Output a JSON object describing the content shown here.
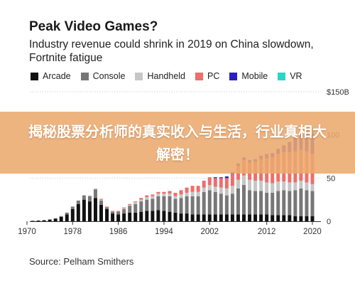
{
  "chart_data": {
    "type": "bar",
    "stacked": true,
    "title": "Peak Video Games?",
    "subtitle": "Industry revenue could shrink in 2019 on China slowdown, Fortnite fatigue",
    "source": "Source: Pelham Smithers",
    "ylim": [
      0,
      150
    ],
    "y_ticks": [
      {
        "value": 150,
        "label": "$150B"
      },
      {
        "value": 100,
        "label": "100"
      },
      {
        "value": 50,
        "label": "50"
      },
      {
        "value": 0,
        "label": "0"
      }
    ],
    "x_tick_labels": [
      "1970",
      "1978",
      "1986",
      "1994",
      "2002",
      "2012",
      "2020"
    ],
    "x_tick_values": [
      1970,
      1978,
      1986,
      1994,
      2002,
      2012,
      2020
    ],
    "xlim": [
      1970.5,
      2020.5
    ],
    "grid": true,
    "legend_position": "top",
    "colors": {
      "Arcade": "#111111",
      "Console": "#777777",
      "Handheld": "#c6c6c6",
      "PC": "#ee6e6a",
      "Mobile": "#2b1fc4",
      "VR": "#2ad6c4"
    },
    "series_names": [
      "Arcade",
      "Console",
      "Handheld",
      "PC",
      "Mobile",
      "VR"
    ],
    "years": [
      1971,
      1972,
      1973,
      1974,
      1975,
      1976,
      1977,
      1978,
      1979,
      1980,
      1981,
      1982,
      1983,
      1984,
      1985,
      1986,
      1987,
      1988,
      1989,
      1990,
      1991,
      1992,
      1993,
      1994,
      1995,
      1996,
      1997,
      1998,
      1999,
      2000,
      2001,
      2002,
      2003,
      2004,
      2005,
      2006,
      2007,
      2008,
      2009,
      2010,
      2011,
      2012,
      2013,
      2014,
      2015,
      2016,
      2017,
      2018,
      2019,
      2020
    ],
    "series": [
      {
        "name": "Arcade",
        "values": [
          0.5,
          0.8,
          1.2,
          2,
          3,
          5,
          8,
          14,
          20,
          25,
          23,
          27,
          19,
          14,
          9,
          8,
          9,
          10,
          10,
          11,
          12,
          12,
          13,
          12,
          11,
          10,
          9,
          9,
          8,
          8,
          8,
          8,
          8,
          8,
          8,
          8,
          8,
          8,
          8,
          8,
          8,
          8,
          7,
          7,
          7,
          7,
          6,
          6,
          6,
          6
        ]
      },
      {
        "name": "Console",
        "values": [
          0,
          0,
          0,
          0,
          0.5,
          1,
          2,
          3,
          4,
          5,
          6,
          10,
          5,
          2,
          2,
          3,
          5,
          8,
          10,
          12,
          13,
          14,
          16,
          17,
          18,
          16,
          18,
          20,
          21,
          21,
          26,
          28,
          26,
          24,
          22,
          24,
          30,
          34,
          28,
          27,
          27,
          25,
          26,
          28,
          29,
          28,
          30,
          32,
          30,
          29
        ]
      },
      {
        "name": "Handheld",
        "values": [
          0,
          0,
          0,
          0,
          0,
          0,
          0,
          0,
          0,
          0,
          1,
          1,
          1,
          0,
          0,
          0,
          1,
          1,
          2,
          2,
          3,
          3,
          3,
          3,
          3,
          3,
          4,
          4,
          5,
          5,
          5,
          6,
          6,
          7,
          8,
          9,
          10,
          11,
          12,
          12,
          12,
          12,
          11,
          11,
          10,
          10,
          9,
          9,
          9,
          8
        ]
      },
      {
        "name": "PC",
        "values": [
          0,
          0,
          0,
          0,
          0,
          0,
          0,
          0,
          0,
          0,
          0,
          0,
          1,
          1,
          1,
          1,
          1,
          1,
          1,
          2,
          2,
          2,
          2,
          2,
          3,
          4,
          5,
          6,
          7,
          7,
          8,
          9,
          10,
          11,
          12,
          14,
          16,
          18,
          20,
          22,
          25,
          28,
          30,
          32,
          34,
          35,
          36,
          36,
          36,
          35
        ]
      },
      {
        "name": "Mobile",
        "values": [
          0,
          0,
          0,
          0,
          0,
          0,
          0,
          0,
          0,
          0,
          0,
          0,
          0,
          0,
          0,
          0,
          0,
          0,
          0,
          0,
          0,
          0,
          0,
          0,
          0,
          0,
          0,
          0,
          0,
          0,
          0,
          0,
          1,
          1,
          2,
          2,
          3,
          3,
          3,
          3,
          4,
          5,
          5,
          6,
          8,
          12,
          18,
          22,
          24,
          24
        ]
      },
      {
        "name": "VR",
        "values": [
          0,
          0,
          0,
          0,
          0,
          0,
          0,
          0,
          0,
          0,
          0,
          0,
          0,
          0,
          0,
          0,
          0,
          0,
          0,
          0,
          0,
          0,
          0,
          0,
          0,
          0,
          0,
          0,
          0,
          0,
          0,
          0,
          0,
          0,
          0,
          0,
          0,
          0,
          0,
          0,
          0,
          0,
          0,
          0,
          0,
          0,
          1,
          3,
          5,
          6
        ]
      }
    ]
  },
  "banner": {
    "text": "揭秘股票分析师的真实收入与生活，行业真相大解密！"
  }
}
